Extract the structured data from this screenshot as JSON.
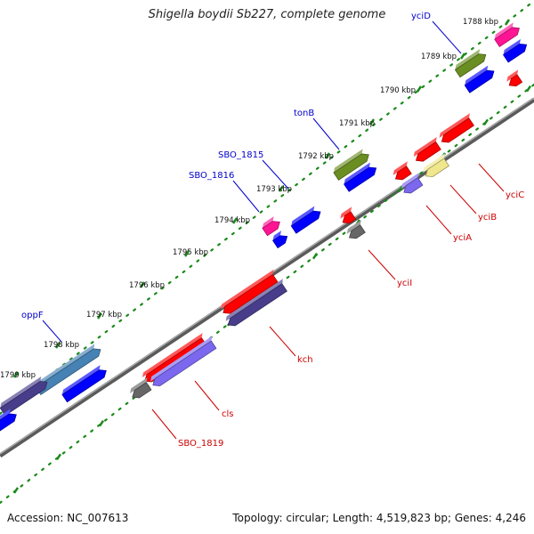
{
  "title": "Shigella boydii Sb227, complete genome",
  "footer": {
    "accession": "Accession: NC_007613",
    "summary": "Topology: circular; Length: 4,519,823 bp; Genes: 4,246"
  },
  "colors": {
    "backbone": "#808080",
    "tick_dots": "#1a8a1a",
    "label_forward": "#0000cc",
    "label_reverse": "#cc0000",
    "red": "#ff0000",
    "blue": "#0000ff",
    "olive": "#6b8e23",
    "magenta": "#ff1493",
    "slate": "#483d8b",
    "mediumslate": "#7b68ee",
    "steelblue": "#4682b4",
    "khaki": "#f0e68c",
    "gray": "#666666"
  },
  "scale": {
    "unit": "kbp",
    "ticks": [
      "1788 kbp",
      "1789 kbp",
      "1790 kbp",
      "1791 kbp",
      "1792 kbp",
      "1793 kbp",
      "1794 kbp",
      "1795 kbp",
      "1796 kbp",
      "1797 kbp",
      "1798 kbp",
      "1799 kbp"
    ]
  },
  "gene_labels": [
    {
      "name": "yciD",
      "strand": "forward"
    },
    {
      "name": "tonB",
      "strand": "forward"
    },
    {
      "name": "SBO_1815",
      "strand": "forward"
    },
    {
      "name": "SBO_1816",
      "strand": "forward"
    },
    {
      "name": "oppF",
      "strand": "forward"
    },
    {
      "name": "yciC",
      "strand": "reverse"
    },
    {
      "name": "yciB",
      "strand": "reverse"
    },
    {
      "name": "yciA",
      "strand": "reverse"
    },
    {
      "name": "yciI",
      "strand": "reverse"
    },
    {
      "name": "kch",
      "strand": "reverse"
    },
    {
      "name": "cls",
      "strand": "reverse"
    },
    {
      "name": "SBO_1819",
      "strand": "reverse"
    }
  ],
  "features": [
    {
      "track": "fwd_outer",
      "color": "magenta"
    },
    {
      "track": "fwd_inner",
      "color": "blue"
    },
    {
      "track": "fwd_outer",
      "color": "olive"
    },
    {
      "track": "fwd_inner",
      "color": "blue"
    },
    {
      "track": "fwd_outer",
      "color": "olive"
    },
    {
      "track": "fwd_inner",
      "color": "blue"
    },
    {
      "track": "fwd_outer",
      "color": "magenta"
    },
    {
      "track": "fwd_inner",
      "color": "blue"
    },
    {
      "track": "fwd_inner",
      "color": "blue"
    },
    {
      "track": "fwd_outer",
      "color": "steelblue"
    },
    {
      "track": "fwd_inner",
      "color": "slate"
    },
    {
      "track": "fwd_inner",
      "color": "blue"
    },
    {
      "track": "fwd_inner",
      "color": "blue"
    },
    {
      "track": "rev_inner",
      "color": "red"
    },
    {
      "track": "rev_inner",
      "color": "red"
    },
    {
      "track": "rev_inner",
      "color": "red"
    },
    {
      "track": "rev_outer",
      "color": "mediumslate"
    },
    {
      "track": "rev_outer",
      "color": "khaki"
    },
    {
      "track": "rev_inner",
      "color": "red"
    },
    {
      "track": "rev_outer",
      "color": "gray"
    },
    {
      "track": "rev_inner",
      "color": "red"
    },
    {
      "track": "rev_outer",
      "color": "slate"
    },
    {
      "track": "rev_inner",
      "color": "red"
    },
    {
      "track": "rev_inner",
      "color": "red"
    },
    {
      "track": "rev_outer",
      "color": "gray"
    },
    {
      "track": "rev_outer",
      "color": "mediumslate"
    }
  ]
}
